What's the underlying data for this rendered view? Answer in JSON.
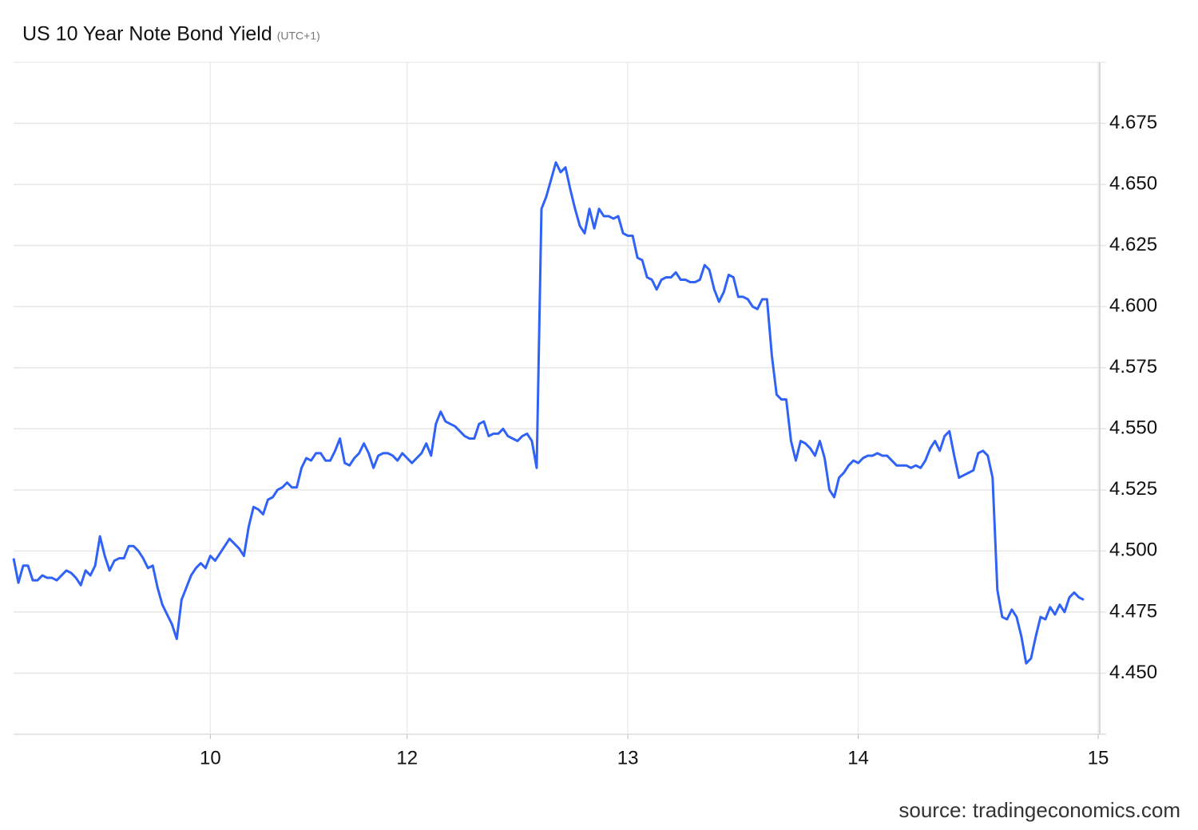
{
  "chart_data": {
    "type": "line",
    "title": "US 10 Year Note Bond Yield",
    "subtitle": "(UTC+1)",
    "source": "source: tradingeconomics.com",
    "categories": [
      null,
      null,
      null,
      null,
      null,
      null,
      null,
      null,
      null,
      null,
      null,
      null,
      null,
      null,
      null,
      null,
      null,
      null,
      null,
      null,
      null,
      null,
      null,
      null,
      null,
      null,
      null,
      null,
      null,
      null,
      null,
      null,
      null,
      null,
      null,
      null,
      null,
      null,
      null,
      null,
      null,
      "10",
      null,
      null,
      null,
      null,
      null,
      null,
      null,
      null,
      null,
      null,
      null,
      null,
      null,
      null,
      null,
      null,
      null,
      null,
      null,
      null,
      null,
      null,
      null,
      null,
      null,
      null,
      null,
      null,
      null,
      null,
      null,
      null,
      null,
      null,
      null,
      null,
      null,
      null,
      null,
      null,
      "12",
      null,
      null,
      null,
      null,
      null,
      null,
      null,
      null,
      null,
      null,
      null,
      null,
      null,
      null,
      null,
      null,
      null,
      null,
      null,
      null,
      null,
      null,
      null,
      null,
      null,
      null,
      null,
      null,
      null,
      null,
      null,
      null,
      null,
      null,
      null,
      null,
      null,
      null,
      null,
      null,
      null,
      null,
      null,
      null,
      null,
      "13",
      null,
      null,
      null,
      null,
      null,
      null,
      null,
      null,
      null,
      null,
      null,
      null,
      null,
      null,
      null,
      null,
      null,
      null,
      null,
      null,
      null,
      null,
      null,
      null,
      null,
      null,
      null,
      null,
      null,
      null,
      null,
      null,
      null,
      null,
      null,
      null,
      null,
      null,
      null,
      null,
      null,
      null,
      null,
      null,
      null,
      null,
      null,
      "14",
      null,
      null,
      null,
      null,
      null,
      null,
      null,
      null,
      null,
      null,
      null,
      null,
      null,
      null,
      null,
      null,
      null,
      null,
      null,
      null,
      null,
      null,
      null,
      null,
      null,
      null,
      null,
      null,
      null,
      null,
      null,
      null,
      null,
      null,
      null,
      null,
      null,
      null,
      null,
      null,
      null,
      null,
      null,
      null,
      null,
      null,
      null,
      null,
      null,
      "15"
    ],
    "series": [
      {
        "name": "US 10 Year Note Bond Yield",
        "color": "#2f62f5",
        "values": [
          4.497,
          4.487,
          4.494,
          4.494,
          4.488,
          4.488,
          4.49,
          4.489,
          4.489,
          4.488,
          4.49,
          4.492,
          4.491,
          4.489,
          4.486,
          4.492,
          4.49,
          4.494,
          4.506,
          4.498,
          4.492,
          4.496,
          4.497,
          4.497,
          4.502,
          4.502,
          4.5,
          4.497,
          4.493,
          4.494,
          4.485,
          4.478,
          4.474,
          4.47,
          4.464,
          4.48,
          4.485,
          4.49,
          4.493,
          4.495,
          4.493,
          4.498,
          4.496,
          4.499,
          4.502,
          4.505,
          4.503,
          4.501,
          4.498,
          4.51,
          4.518,
          4.517,
          4.515,
          4.521,
          4.522,
          4.525,
          4.526,
          4.528,
          4.526,
          4.526,
          4.534,
          4.538,
          4.537,
          4.54,
          4.54,
          4.537,
          4.537,
          4.541,
          4.546,
          4.536,
          4.535,
          4.538,
          4.54,
          4.544,
          4.54,
          4.534,
          4.539,
          4.54,
          4.54,
          4.539,
          4.537,
          4.54,
          4.538,
          4.536,
          4.538,
          4.54,
          4.544,
          4.539,
          4.552,
          4.557,
          4.553,
          4.552,
          4.551,
          4.549,
          4.547,
          4.546,
          4.546,
          4.552,
          4.553,
          4.547,
          4.548,
          4.548,
          4.55,
          4.547,
          4.546,
          4.545,
          4.547,
          4.548,
          4.545,
          4.534,
          4.64,
          4.645,
          4.652,
          4.659,
          4.655,
          4.657,
          4.648,
          4.64,
          4.633,
          4.63,
          4.64,
          4.632,
          4.64,
          4.637,
          4.637,
          4.636,
          4.637,
          4.63,
          4.629,
          4.629,
          4.62,
          4.619,
          4.612,
          4.611,
          4.607,
          4.611,
          4.612,
          4.612,
          4.614,
          4.611,
          4.611,
          4.61,
          4.61,
          4.611,
          4.617,
          4.615,
          4.607,
          4.602,
          4.606,
          4.613,
          4.612,
          4.604,
          4.604,
          4.603,
          4.6,
          4.599,
          4.603,
          4.603,
          4.58,
          4.564,
          4.562,
          4.562,
          4.545,
          4.537,
          4.545,
          4.544,
          4.542,
          4.539,
          4.545,
          4.538,
          4.525,
          4.522,
          4.53,
          4.532,
          4.535,
          4.537,
          4.536,
          4.538,
          4.539,
          4.539,
          4.54,
          4.539,
          4.539,
          4.537,
          4.535,
          4.535,
          4.535,
          4.534,
          4.535,
          4.534,
          4.537,
          4.542,
          4.545,
          4.541,
          4.547,
          4.549,
          4.539,
          4.53,
          4.531,
          4.532,
          4.533,
          4.54,
          4.541,
          4.539,
          4.53,
          4.484,
          4.473,
          4.472,
          4.476,
          4.473,
          4.465,
          4.454,
          4.456,
          4.465,
          4.473,
          4.472,
          4.477,
          4.474,
          4.478,
          4.475,
          4.481,
          4.483,
          4.481,
          4.48,
          null,
          null,
          null
        ]
      }
    ],
    "ylim": [
      4.425,
      4.7
    ],
    "yticks": [
      {
        "value": 4.45,
        "label": "4.450"
      },
      4.475,
      {
        "value": 4.5,
        "label": "4.500"
      },
      4.525,
      {
        "value": 4.55,
        "label": "4.550"
      },
      4.575,
      {
        "value": 4.6,
        "label": "4.600"
      },
      4.625,
      {
        "value": 4.65,
        "label": "4.650"
      },
      4.675
    ],
    "grid": true
  }
}
